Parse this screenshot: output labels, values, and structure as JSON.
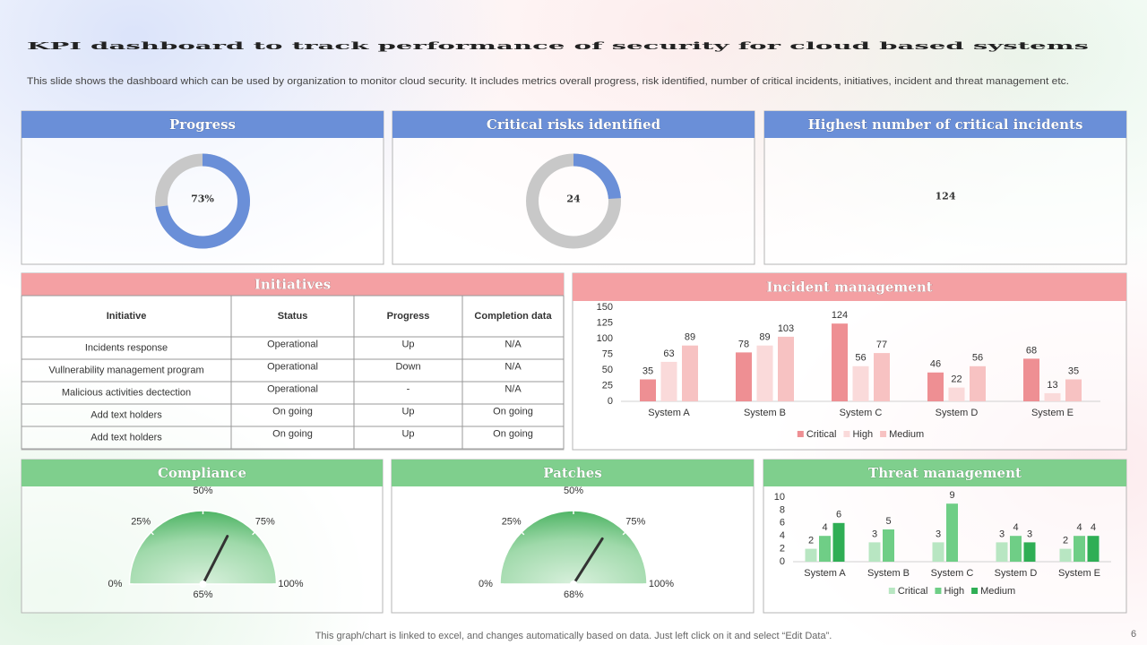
{
  "header": {
    "title": "KPI dashboard to track performance of security for cloud based systems",
    "subtitle": "This slide shows the dashboard which can be used by organization to monitor cloud security. It includes metrics overall progress, risk identified, number of critical incidents, initiatives, incident and threat management etc."
  },
  "initiatives": {
    "title": "Initiatives",
    "columns": [
      "Initiative",
      "Status",
      "Progress",
      "Completion data"
    ],
    "rows": [
      [
        "Incidents response",
        "Operational",
        "Up",
        "N/A"
      ],
      [
        "Vullnerability management program",
        "Operational",
        "Down",
        "N/A"
      ],
      [
        "Malicious activities dectection",
        "Operational",
        "-",
        "N/A"
      ],
      [
        "Add text holders",
        "On going",
        "Up",
        "On going"
      ],
      [
        "Add text holders",
        "On going",
        "Up",
        "On going"
      ]
    ]
  },
  "chart_data": [
    {
      "type": "donut",
      "title": "Progress",
      "values": [
        73
      ],
      "value_labels": [
        "73%"
      ],
      "ylim": [
        0,
        100
      ],
      "color": "#6a8fd8"
    },
    {
      "type": "donut",
      "title": "Critical risks identified",
      "values": [
        24
      ],
      "ylim": [
        0,
        100
      ],
      "color": "#6a8fd8"
    },
    {
      "type": "kpi",
      "title": "Highest number of critical incidents",
      "values": [
        124
      ]
    },
    {
      "type": "bar",
      "title": "Incident management",
      "categories": [
        "System A",
        "System B",
        "System C",
        "System D",
        "System E"
      ],
      "series": [
        {
          "name": "Critical",
          "color": "#ee8f93",
          "values": [
            35,
            78,
            124,
            46,
            68
          ]
        },
        {
          "name": "High",
          "color": "#fadada",
          "values": [
            63,
            89,
            56,
            22,
            13
          ]
        },
        {
          "name": "Medium",
          "color": "#f7c2c2",
          "values": [
            89,
            103,
            77,
            56,
            35
          ]
        }
      ],
      "ylim": [
        0,
        150
      ],
      "yticks": [
        0,
        25,
        50,
        75,
        100,
        125,
        150
      ],
      "grid": false,
      "legend": "bottom"
    },
    {
      "type": "gauge",
      "title": "Compliance",
      "values": [
        65
      ],
      "value_labels": [
        "65%"
      ],
      "xlim": [
        0,
        100
      ],
      "xticks": [
        {
          "value": 0,
          "label": "0%"
        },
        {
          "value": 25,
          "label": "25%"
        },
        {
          "value": 50,
          "label": "50%"
        },
        {
          "value": 75,
          "label": "75%"
        },
        {
          "value": 100,
          "label": "100%"
        }
      ]
    },
    {
      "type": "gauge",
      "title": "Patches",
      "values": [
        68
      ],
      "value_labels": [
        "68%"
      ],
      "xlim": [
        0,
        100
      ],
      "xticks": [
        {
          "value": 0,
          "label": "0%"
        },
        {
          "value": 25,
          "label": "25%"
        },
        {
          "value": 50,
          "label": "50%"
        },
        {
          "value": 75,
          "label": "75%"
        },
        {
          "value": 100,
          "label": "100%"
        }
      ]
    },
    {
      "type": "bar",
      "title": "Threat management",
      "categories": [
        "System A",
        "System B",
        "System C",
        "System D",
        "System E"
      ],
      "series": [
        {
          "name": "Critical",
          "color": "#b8e6c2",
          "values": [
            2,
            3,
            3,
            3,
            2
          ]
        },
        {
          "name": "High",
          "color": "#6fce86",
          "values": [
            4,
            5,
            9,
            4,
            4
          ]
        },
        {
          "name": "Medium",
          "color": "#2fae55",
          "values": [
            6,
            null,
            null,
            3,
            4
          ]
        }
      ],
      "ylim": [
        0,
        10
      ],
      "yticks": [
        0,
        2,
        4,
        6,
        8,
        10
      ],
      "grid": false,
      "legend": "bottom"
    }
  ],
  "footer": {
    "note": "This graph/chart is linked to excel, and changes automatically based on data. Just left click on it and select “Edit Data”.",
    "page": "6"
  }
}
